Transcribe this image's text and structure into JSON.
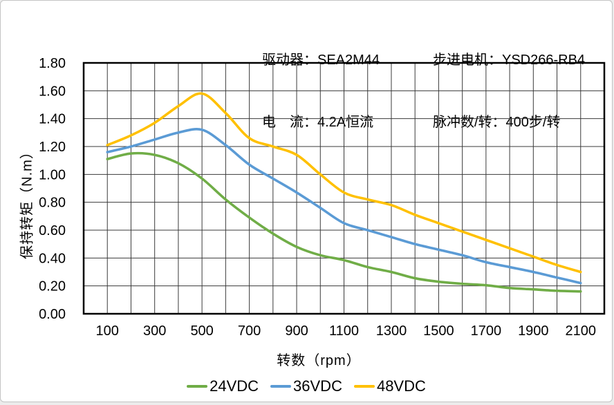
{
  "header": {
    "left": {
      "line1": "驱动器：SEA2M44",
      "line2": "电　流：4.2A恒流"
    },
    "right": {
      "line1": "步进电机：YSD266-RB4",
      "line2": "脉冲数/转：400步/转"
    }
  },
  "chart_data": {
    "type": "line",
    "title": "",
    "xlabel": "转数（rpm）",
    "ylabel": "保持转矩（N.m）",
    "xlim": [
      0,
      2200
    ],
    "ylim": [
      0,
      1.8
    ],
    "grid": "on",
    "grid_step_x_rpm": 100,
    "grid_step_y_nm": 0.2,
    "legend_position": "bottom",
    "x_tick_labels": [
      "100",
      "300",
      "500",
      "700",
      "900",
      "1100",
      "1300",
      "1500",
      "1700",
      "1900",
      "2100"
    ],
    "x_tick_values": [
      100,
      300,
      500,
      700,
      900,
      1100,
      1300,
      1500,
      1700,
      1900,
      2100
    ],
    "y_tick_labels": [
      "0.00",
      "0.20",
      "0.40",
      "0.60",
      "0.80",
      "1.00",
      "1.20",
      "1.40",
      "1.60",
      "1.80"
    ],
    "y_tick_values": [
      0,
      0.2,
      0.4,
      0.6,
      0.8,
      1.0,
      1.2,
      1.4,
      1.6,
      1.8
    ],
    "x": [
      100,
      200,
      300,
      400,
      500,
      600,
      700,
      800,
      900,
      1000,
      1100,
      1200,
      1300,
      1400,
      1500,
      1600,
      1700,
      1800,
      1900,
      2000,
      2100
    ],
    "series": [
      {
        "name": "24VDC",
        "color": "#70AD47",
        "values": [
          1.11,
          1.15,
          1.14,
          1.08,
          0.97,
          0.82,
          0.69,
          0.575,
          0.48,
          0.42,
          0.385,
          0.335,
          0.3,
          0.255,
          0.23,
          0.215,
          0.205,
          0.185,
          0.175,
          0.165,
          0.16
        ]
      },
      {
        "name": "36VDC",
        "color": "#5B9BD5",
        "values": [
          1.16,
          1.2,
          1.25,
          1.3,
          1.32,
          1.21,
          1.07,
          0.97,
          0.87,
          0.76,
          0.65,
          0.6,
          0.55,
          0.5,
          0.46,
          0.42,
          0.37,
          0.335,
          0.3,
          0.26,
          0.22
        ]
      },
      {
        "name": "48VDC",
        "color": "#FFC000",
        "values": [
          1.21,
          1.28,
          1.37,
          1.49,
          1.58,
          1.44,
          1.26,
          1.2,
          1.14,
          1.0,
          0.87,
          0.82,
          0.78,
          0.71,
          0.65,
          0.59,
          0.53,
          0.47,
          0.41,
          0.35,
          0.3
        ]
      }
    ],
    "colors": {
      "axis": "#000000",
      "grid": "#3a3a3a",
      "text": "#000000"
    }
  }
}
